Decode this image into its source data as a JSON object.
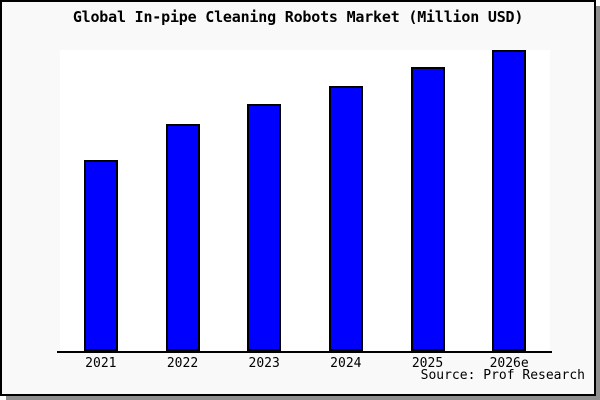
{
  "chart_data": {
    "type": "bar",
    "title": "Global In-pipe Cleaning Robots Market (Million USD)",
    "categories": [
      "2021",
      "2022",
      "2023",
      "2024",
      "2025",
      "2026e"
    ],
    "values": [
      63.5,
      75.4,
      82.1,
      88.0,
      94.4,
      100
    ],
    "value_scale": "percent-of-tallest-bar (no numeric y-axis or data labels shown in image)",
    "xlabel": "",
    "ylabel": "",
    "y_axis_visible": false,
    "grid": false,
    "legend": "none",
    "bar_color": "#0000ff",
    "bar_border_color": "#000000",
    "plot_background": "#ffffff",
    "page_background": "#f9f9f9",
    "source": "Source: Prof Research"
  }
}
